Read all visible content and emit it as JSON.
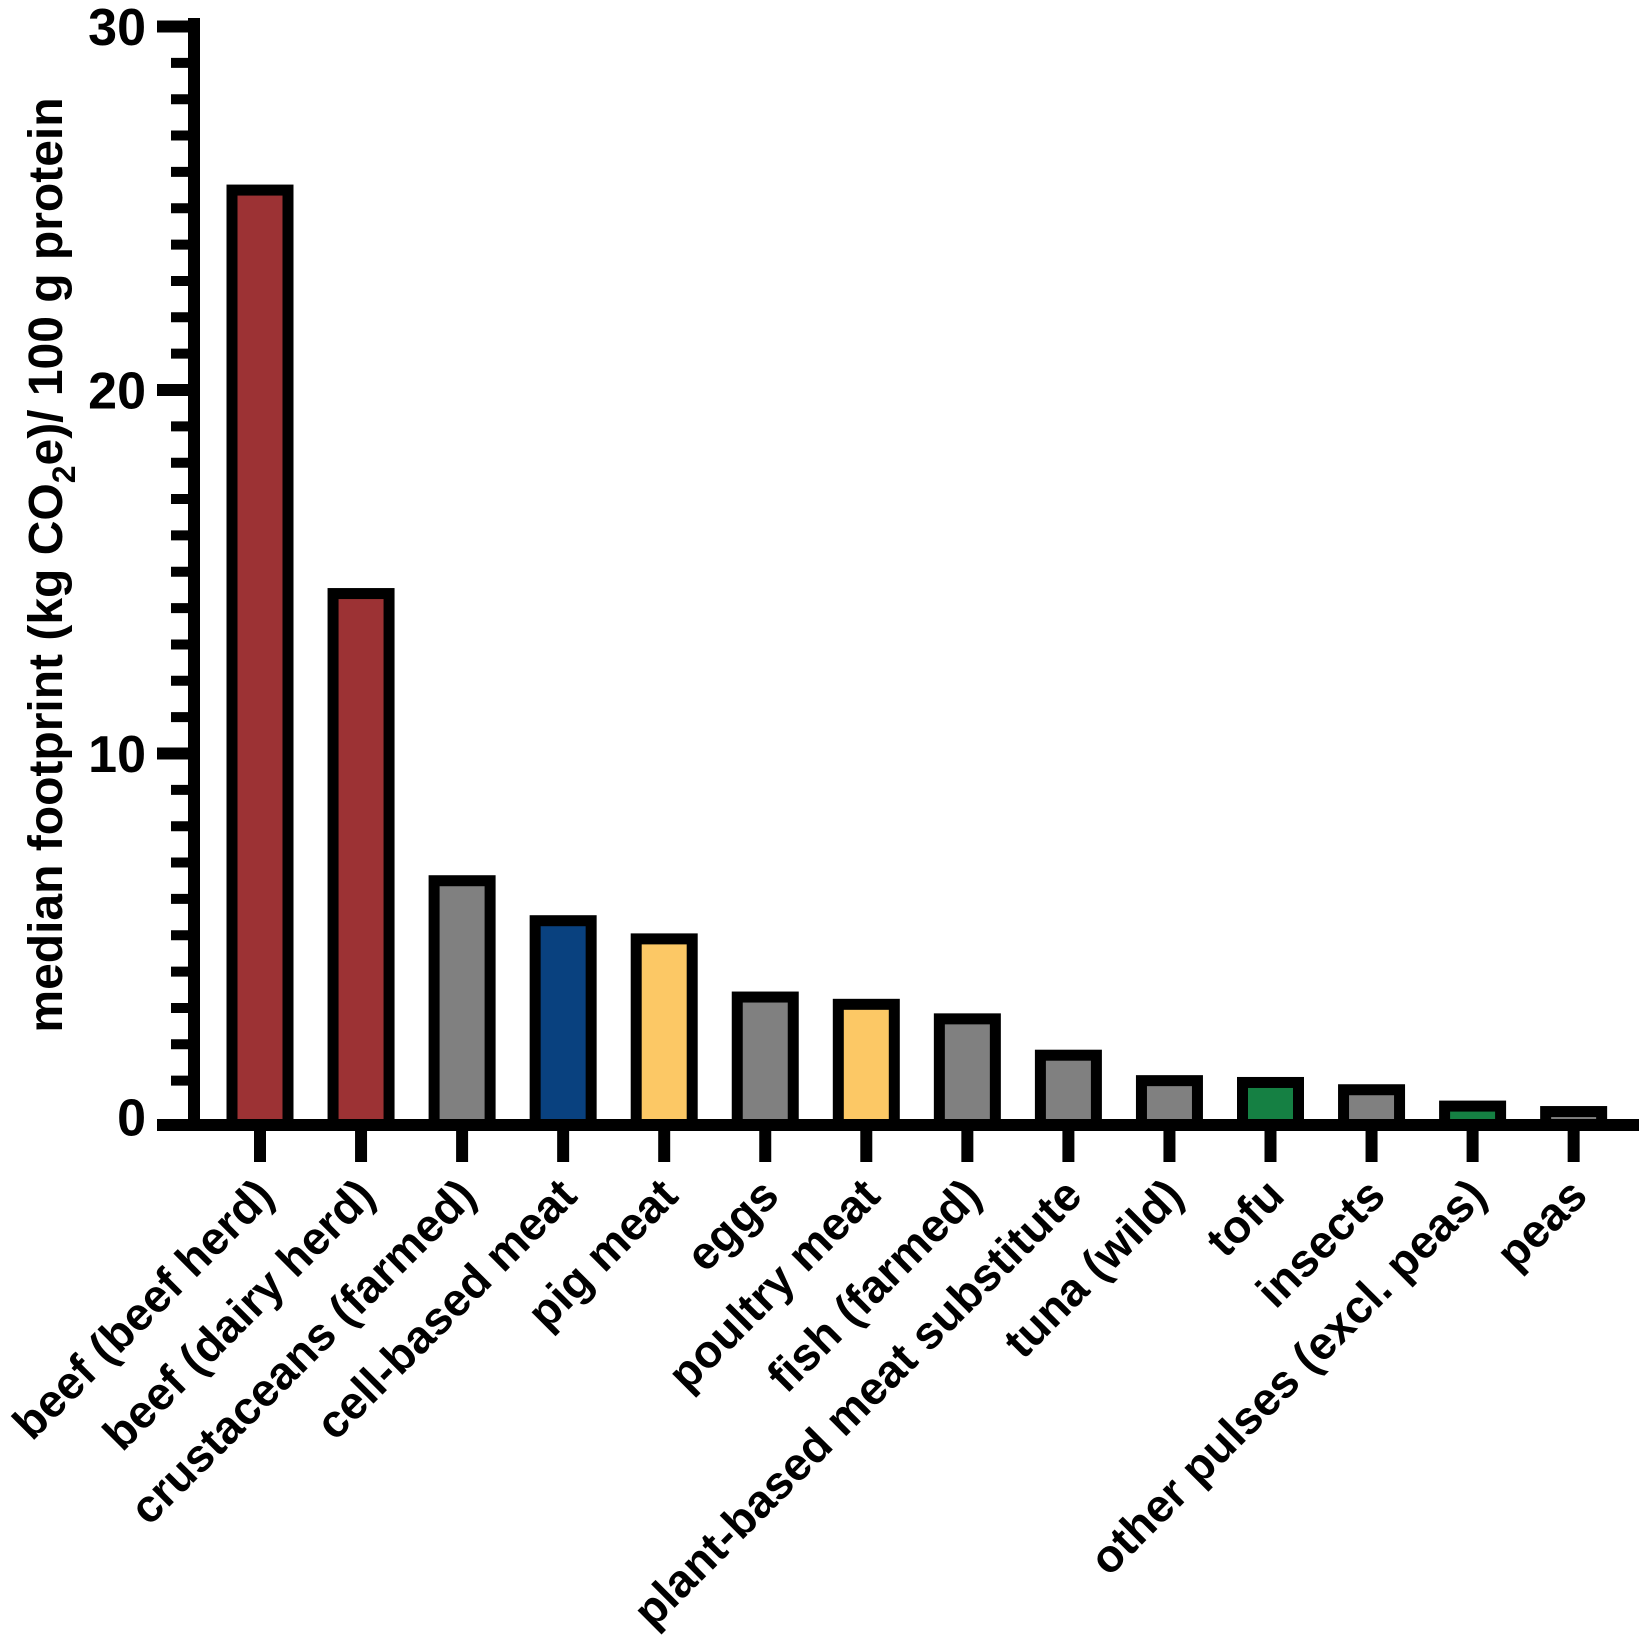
{
  "chart_data": {
    "type": "bar",
    "title": "",
    "xlabel": "",
    "ylabel_parts": {
      "pre": "median footprint (kg CO",
      "sub": "2",
      "post": "e)/ 100 g protein"
    },
    "ylim": [
      0,
      30
    ],
    "ytick_major_interval": 10,
    "ytick_minor_interval": 1,
    "ytick_labels": [
      "0",
      "10",
      "20",
      "30"
    ],
    "grid": false,
    "legend": null,
    "background_color": "#ffffff",
    "axis_color": "#000000",
    "bar_outline_color": "#000000",
    "palette": {
      "red": "#9C3234",
      "navy": "#09417F",
      "yellow": "#FCC865",
      "gray": "#808080",
      "green": "#158043"
    },
    "categories": [
      "beef (beef herd)",
      "beef (dairy herd)",
      "crustaceans (farmed)",
      "cell-based meat",
      "pig meat",
      "eggs",
      "poultry meat",
      "fish (farmed)",
      "plant-based meat substitute",
      "tuna (wild)",
      "tofu",
      "insects",
      "other pulses (excl. peas)",
      "peas"
    ],
    "values": [
      25.5,
      14.4,
      6.5,
      5.4,
      4.9,
      3.3,
      3.1,
      2.7,
      1.7,
      1.0,
      0.95,
      0.75,
      0.3,
      0.15
    ],
    "colors": [
      "#9C3234",
      "#9C3234",
      "#808080",
      "#09417F",
      "#FCC865",
      "#808080",
      "#FCC865",
      "#808080",
      "#808080",
      "#808080",
      "#158043",
      "#808080",
      "#158043",
      "#808080"
    ]
  }
}
